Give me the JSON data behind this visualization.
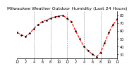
{
  "title": "Milwaukee Weather Outdoor Humidity (Last 24 Hours)",
  "x_values": [
    0,
    1,
    2,
    3,
    4,
    5,
    6,
    7,
    8,
    9,
    10,
    11,
    12,
    13,
    14,
    15,
    16,
    17,
    18,
    19,
    20,
    21,
    22,
    23,
    24
  ],
  "y_values": [
    58,
    55,
    53,
    57,
    63,
    68,
    72,
    74,
    76,
    78,
    79,
    80,
    76,
    72,
    60,
    50,
    40,
    35,
    30,
    27,
    32,
    45,
    58,
    68,
    75
  ],
  "line_color": "#ff0000",
  "marker_color": "#000000",
  "background_color": "#ffffff",
  "grid_color": "#888888",
  "ylim": [
    25,
    85
  ],
  "xlim": [
    0,
    24
  ],
  "yticks": [
    30,
    40,
    50,
    60,
    70,
    80
  ],
  "xtick_positions": [
    0,
    2,
    4,
    6,
    8,
    10,
    12,
    14,
    16,
    18,
    20,
    22,
    24
  ],
  "xtick_labels": [
    "12",
    "2",
    "4",
    "6",
    "8",
    "10",
    "12",
    "2",
    "4",
    "6",
    "8",
    "10",
    "12"
  ],
  "vgrid_positions": [
    4,
    8,
    12,
    16,
    20
  ],
  "title_fontsize": 4.5,
  "tick_fontsize": 3.5,
  "line_width": 0.8,
  "marker_size": 1.8
}
